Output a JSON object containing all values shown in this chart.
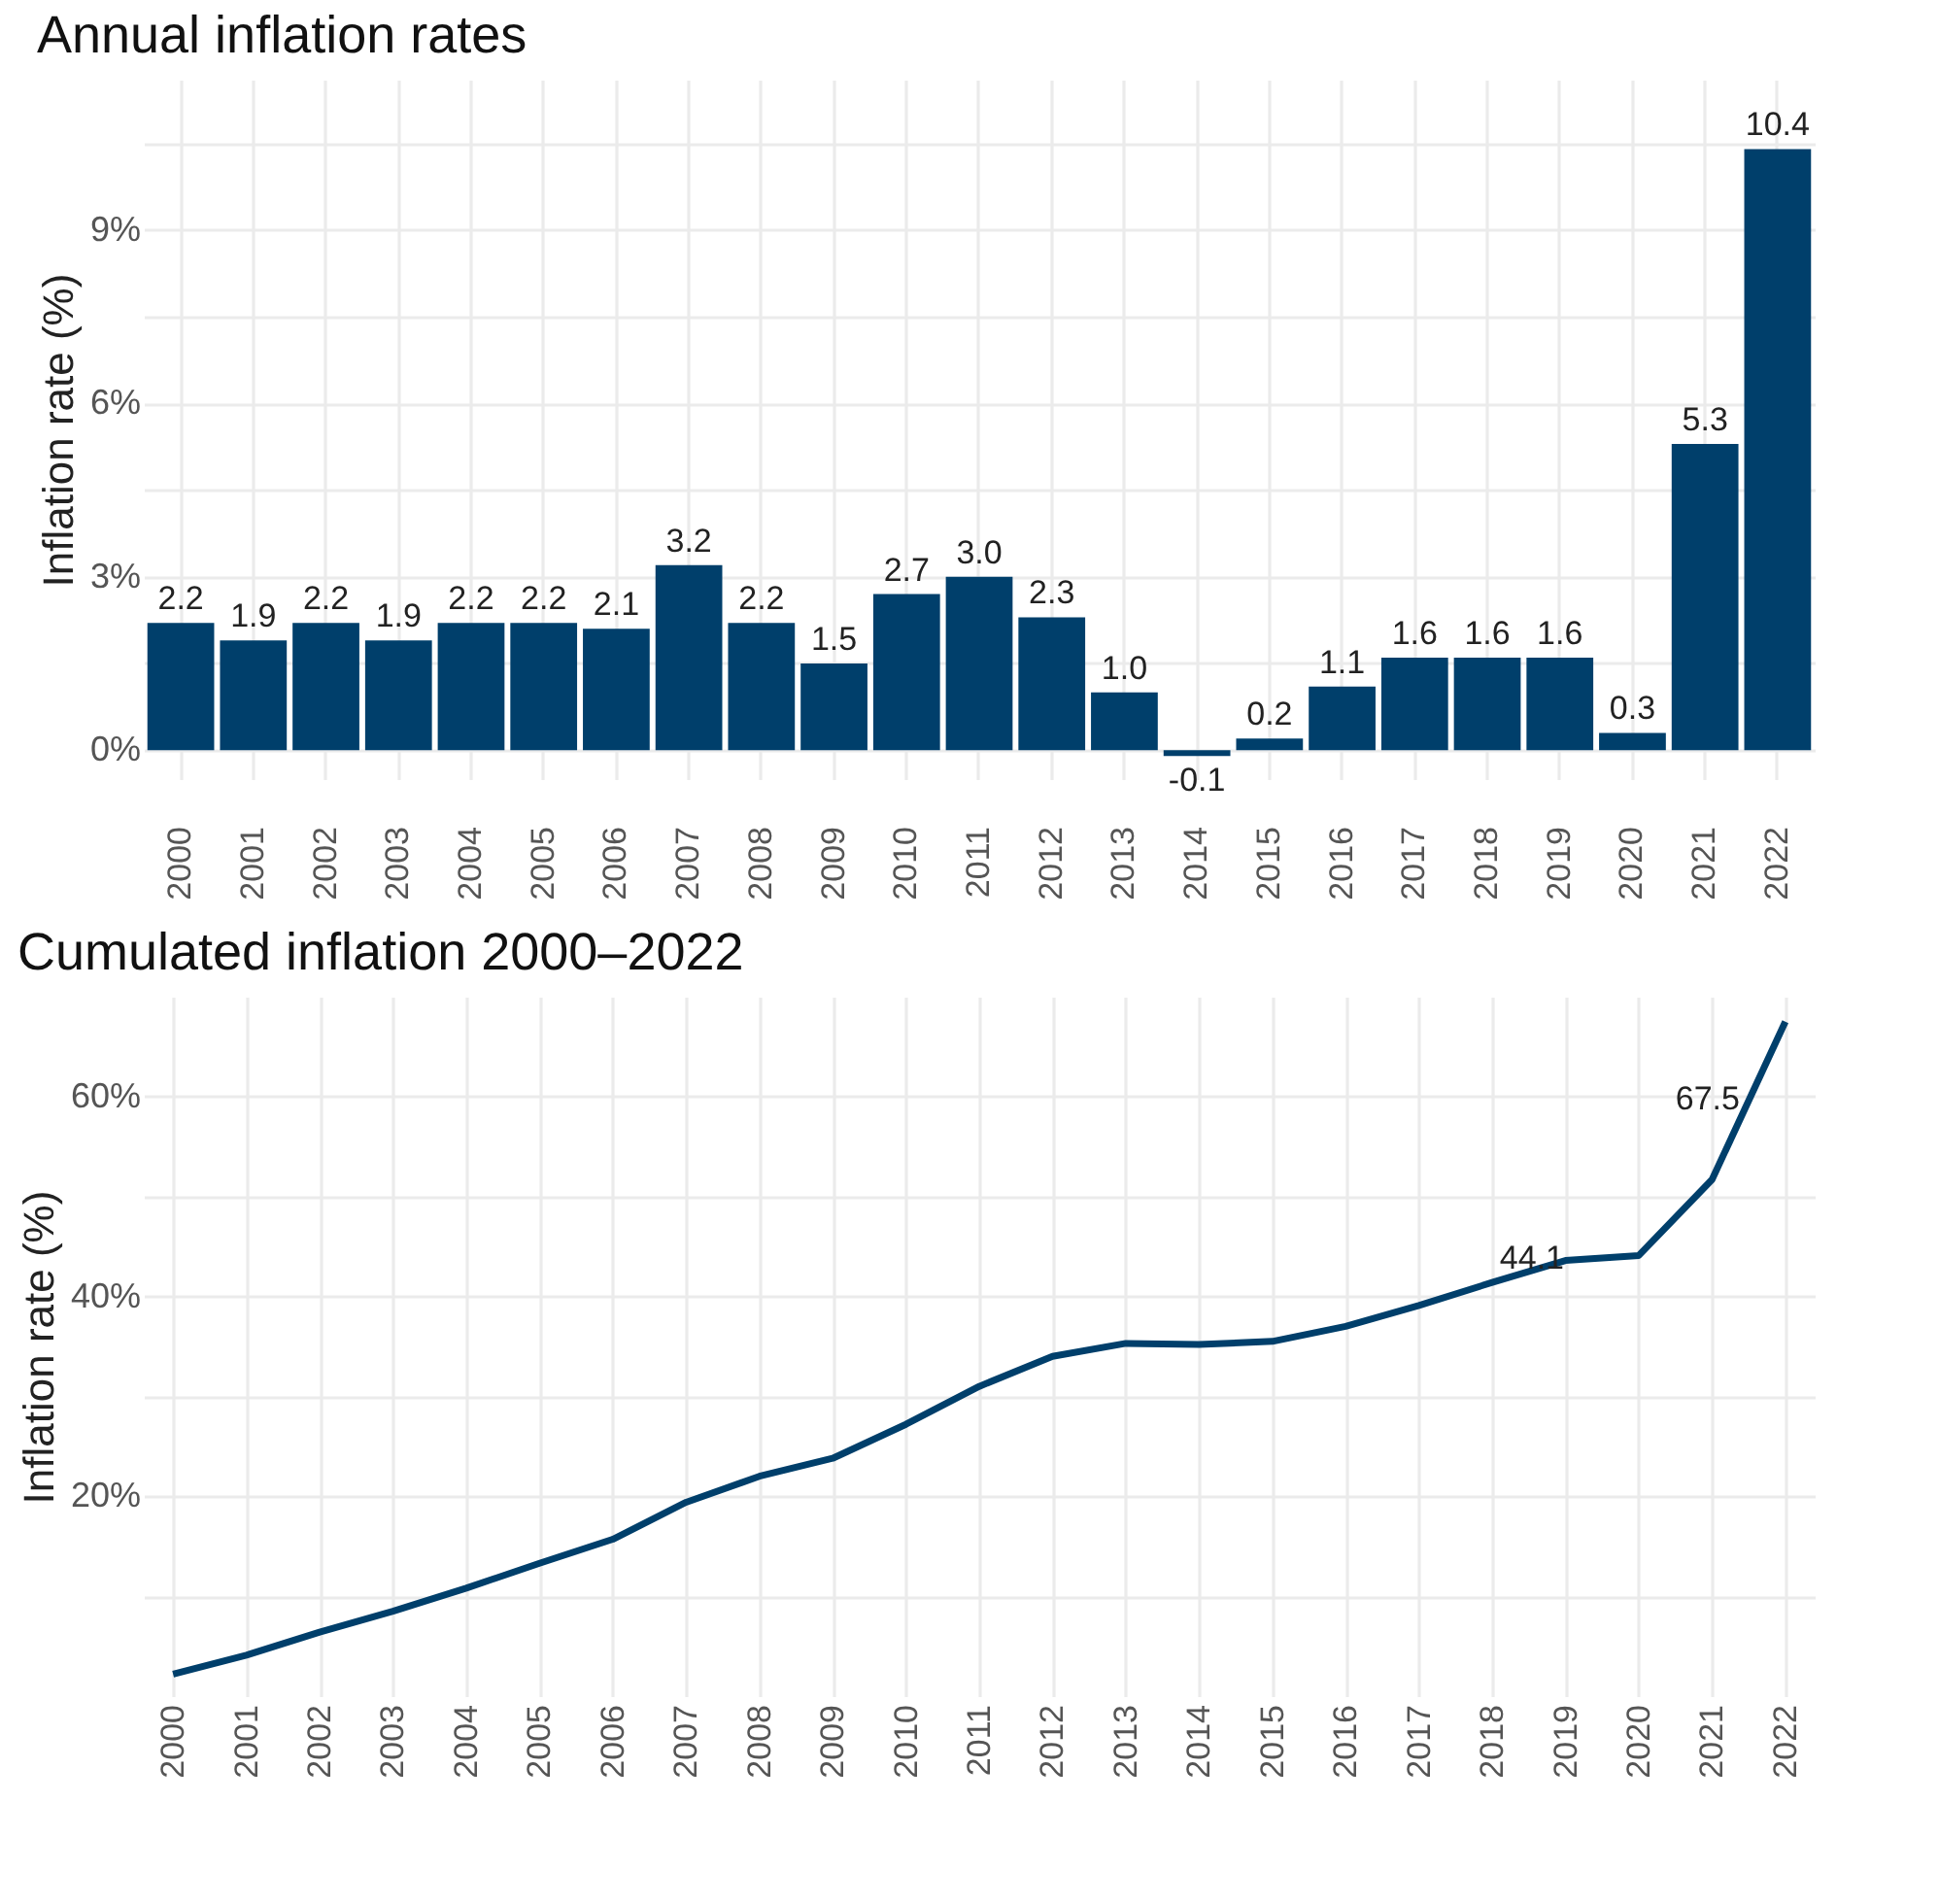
{
  "chart_data": [
    {
      "type": "bar",
      "title": "Annual inflation rates",
      "ylabel": "Inflation rate (%)",
      "categories": [
        "2000",
        "2001",
        "2002",
        "2003",
        "2004",
        "2005",
        "2006",
        "2007",
        "2008",
        "2009",
        "2010",
        "2011",
        "2012",
        "2013",
        "2014",
        "2015",
        "2016",
        "2017",
        "2018",
        "2019",
        "2020",
        "2021",
        "2022"
      ],
      "series": [
        {
          "color": "#003f6b",
          "values": [
            2.2,
            1.9,
            2.2,
            1.9,
            2.2,
            2.2,
            2.1,
            3.2,
            2.2,
            1.5,
            2.7,
            3.0,
            2.3,
            1.0,
            -0.1,
            0.2,
            1.1,
            1.6,
            1.6,
            1.6,
            0.3,
            5.3,
            10.4
          ],
          "value_labels": [
            "2.2",
            "1.9",
            "2.2",
            "1.9",
            "2.2",
            "2.2",
            "2.1",
            "3.2",
            "2.2",
            "1.5",
            "2.7",
            "3.0",
            "2.3",
            "1.0",
            "-0.1",
            "0.2",
            "1.1",
            "1.6",
            "1.6",
            "1.6",
            "0.3",
            "5.3",
            "10.4"
          ]
        }
      ],
      "ylim": [
        -0.5,
        11.6
      ],
      "yticks": [
        {
          "value": 0,
          "label": "0%"
        },
        {
          "value": 1.5,
          "label": null
        },
        {
          "value": 3,
          "label": "3%"
        },
        {
          "value": 4.5,
          "label": null
        },
        {
          "value": 6,
          "label": "6%"
        },
        {
          "value": 7.5,
          "label": null
        },
        {
          "value": 9,
          "label": "9%"
        },
        {
          "value": 10.5,
          "label": null
        }
      ],
      "grid": true
    },
    {
      "type": "line",
      "title": "Cumulated inflation 2000–2022",
      "ylabel": "Inflation rate (%)",
      "categories": [
        "2000",
        "2001",
        "2002",
        "2003",
        "2004",
        "2005",
        "2006",
        "2007",
        "2008",
        "2009",
        "2010",
        "2011",
        "2012",
        "2013",
        "2014",
        "2015",
        "2016",
        "2017",
        "2018",
        "2019",
        "2020",
        "2021",
        "2022"
      ],
      "series": [
        {
          "color": "#003f6b",
          "values": [
            2.2,
            4.1,
            6.4,
            8.5,
            10.8,
            13.3,
            15.7,
            19.4,
            22.0,
            23.8,
            27.2,
            31.0,
            34.0,
            35.3,
            35.2,
            35.5,
            37.0,
            39.1,
            41.4,
            43.6,
            44.1,
            51.7,
            67.5
          ]
        }
      ],
      "ylim": [
        0,
        70
      ],
      "yticks": [
        {
          "value": 10,
          "label": null
        },
        {
          "value": 20,
          "label": "20%"
        },
        {
          "value": 30,
          "label": null
        },
        {
          "value": 40,
          "label": "40%"
        },
        {
          "value": 50,
          "label": null
        },
        {
          "value": 60,
          "label": "60%"
        }
      ],
      "annotations": [
        {
          "text": "44.1",
          "x": "2020",
          "y": 44.1
        },
        {
          "text": "67.5",
          "x": "2022",
          "y": 67.5
        }
      ],
      "grid": true,
      "line_style": "solid"
    }
  ]
}
